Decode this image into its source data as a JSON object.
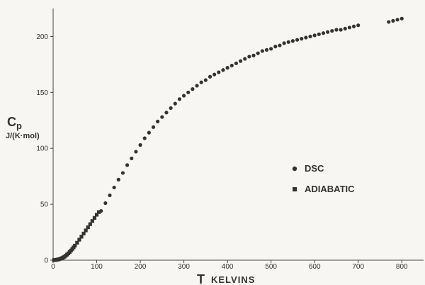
{
  "chart_data": {
    "type": "scatter",
    "ylabel_symbol": "C",
    "ylabel_sub": "p",
    "ylabel_unit": "J/(K·mol)",
    "xlabel_symbol": "T",
    "xlabel_text": "KELVINS",
    "xlim": [
      0,
      850
    ],
    "ylim": [
      0,
      225
    ],
    "xticks": [
      0,
      100,
      200,
      300,
      400,
      500,
      600,
      700,
      800
    ],
    "yticks": [
      0,
      50,
      100,
      150,
      200
    ],
    "grid": false,
    "legend_placement": "right-middle",
    "series": [
      {
        "name": "DSC",
        "marker": "circle",
        "color": "#333333",
        "x": [
          110,
          120,
          130,
          140,
          150,
          160,
          170,
          180,
          190,
          200,
          210,
          220,
          230,
          240,
          250,
          260,
          270,
          280,
          290,
          300,
          310,
          320,
          330,
          340,
          350,
          360,
          370,
          380,
          390,
          400,
          410,
          420,
          430,
          440,
          450,
          460,
          470,
          480,
          490,
          500,
          510,
          520,
          530,
          540,
          550,
          560,
          570,
          580,
          590,
          600,
          610,
          620,
          630,
          640,
          650,
          660,
          670,
          680,
          690,
          700,
          770,
          780,
          790,
          800
        ],
        "y": [
          44,
          51,
          58,
          65,
          72,
          78,
          85,
          91,
          97,
          103,
          109,
          114,
          119,
          124,
          128,
          132,
          136,
          140,
          144,
          147,
          150,
          153,
          156,
          159,
          161,
          164,
          166,
          168,
          170,
          172,
          174,
          176,
          178,
          180,
          182,
          183,
          185,
          187,
          188,
          189,
          191,
          192,
          194,
          195,
          196,
          197,
          198,
          199,
          200,
          201,
          202,
          203,
          204,
          205,
          206,
          206,
          207,
          208,
          209,
          210,
          213,
          214,
          215,
          216
        ]
      },
      {
        "name": "ADIABATIC",
        "marker": "square",
        "color": "#333333",
        "x": [
          2,
          5,
          8,
          11,
          14,
          17,
          20,
          23,
          26,
          29,
          32,
          35,
          38,
          41,
          44,
          47,
          50,
          55,
          60,
          65,
          70,
          75,
          80,
          85,
          90,
          95,
          100,
          105
        ],
        "y": [
          0.1,
          0.2,
          0.4,
          0.6,
          0.9,
          1.3,
          1.8,
          2.4,
          3.1,
          4.0,
          5.0,
          6.1,
          7.3,
          8.6,
          10.0,
          11.5,
          13.0,
          15.6,
          18.3,
          21.0,
          23.8,
          26.6,
          29.4,
          32.2,
          35.0,
          37.8,
          40.6,
          43.0
        ]
      }
    ]
  }
}
